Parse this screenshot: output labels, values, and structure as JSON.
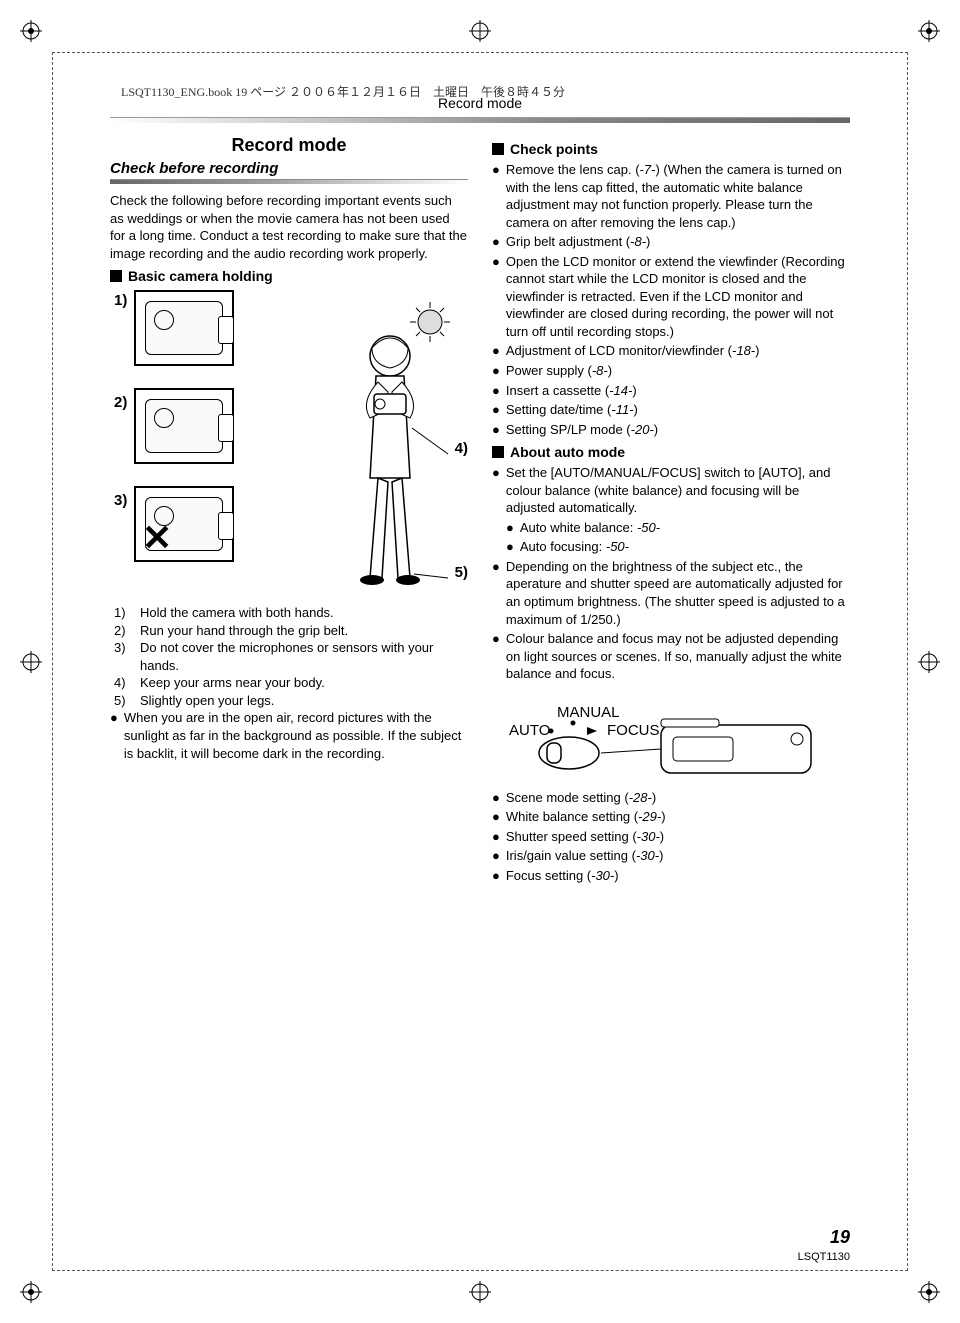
{
  "header": {
    "filestamp": "LSQT1130_ENG.book  19 ページ  ２００６年１２月１６日　土曜日　午後８時４５分"
  },
  "section_header": "Record mode",
  "left": {
    "title": "Record mode",
    "subtitle": "Check before recording",
    "intro_para": "Check the following before recording important events such as weddings or when the movie camera has not been used for a long time. Conduct a test recording to make sure that the image recording and the audio recording work properly.",
    "basic_heading": "Basic camera holding",
    "diagram_labels": {
      "n1": "1)",
      "n2": "2)",
      "n3": "3)",
      "n4": "4)",
      "n5": "5)"
    },
    "numbered_list": [
      {
        "n": "1)",
        "t": "Hold the camera with both hands."
      },
      {
        "n": "2)",
        "t": "Run your hand through the grip belt."
      },
      {
        "n": "3)",
        "t": "Do not cover the microphones or sensors with your hands."
      },
      {
        "n": "4)",
        "t": "Keep your arms near your body."
      },
      {
        "n": "5)",
        "t": "Slightly open your legs."
      }
    ],
    "tail_bullet": "When you are in the open air, record pictures with the sunlight as far in the background as possible. If the subject is backlit, it will become dark in the recording."
  },
  "right": {
    "check_heading": "Check points",
    "check_items": [
      {
        "lead": "Remove the lens cap. (",
        "ref": "-7-",
        "after": ") (When the camera is turned on with the lens cap fitted, the automatic white balance adjustment may not function properly. Please turn the camera on after removing the lens cap.)"
      },
      {
        "lead": "Grip belt adjustment (",
        "ref": "-8-",
        "after": ")"
      },
      {
        "lead": "Open the LCD monitor or extend the viewfinder (Recording cannot start while the LCD monitor is closed and the viewfinder is retracted. Even if the LCD monitor and viewfinder are closed during recording, the power will not turn off until recording stops.)",
        "ref": "",
        "after": ""
      },
      {
        "lead": "Adjustment of LCD monitor/viewfinder (",
        "ref": "-18-",
        "after": ")"
      },
      {
        "lead": "Power supply (",
        "ref": "-8-",
        "after": ")"
      },
      {
        "lead": "Insert a cassette (",
        "ref": "-14-",
        "after": ")"
      },
      {
        "lead": "Setting date/time (",
        "ref": "-11-",
        "after": ")"
      },
      {
        "lead": "Setting SP/LP mode (",
        "ref": "-20-",
        "after": ")"
      }
    ],
    "auto_heading": "About auto mode",
    "auto_intro": "Set the [AUTO/MANUAL/FOCUS] switch to [AUTO], and colour balance (white balance) and focusing will be adjusted automatically.",
    "auto_sub": [
      {
        "lead": "Auto white balance: ",
        "ref": "-50-"
      },
      {
        "lead": "Auto focusing: ",
        "ref": "-50-"
      }
    ],
    "auto_bullets": [
      "Depending on the brightness of the subject etc., the aperature and shutter speed are automatically adjusted for an optimum brightness. (The shutter speed is adjusted to a maximum of 1/250.)",
      "Colour balance and focus may not be adjusted depending on light sources or scenes. If so, manually adjust the white balance and focus."
    ],
    "switch_labels": {
      "auto": "AUTO",
      "manual": "MANUAL",
      "focus": "FOCUS"
    },
    "settings_list": [
      {
        "lead": "Scene mode setting (",
        "ref": "-28-",
        "after": ")"
      },
      {
        "lead": "White balance setting (",
        "ref": "-29-",
        "after": ")"
      },
      {
        "lead": "Shutter speed setting (",
        "ref": "-30-",
        "after": ")"
      },
      {
        "lead": "Iris/gain value setting (",
        "ref": "-30-",
        "after": ")"
      },
      {
        "lead": "Focus setting (",
        "ref": "-30-",
        "after": ")"
      }
    ]
  },
  "footer": {
    "page": "19",
    "docid": "LSQT1130"
  },
  "colors": {
    "text": "#000000",
    "gradient": "#777777"
  }
}
